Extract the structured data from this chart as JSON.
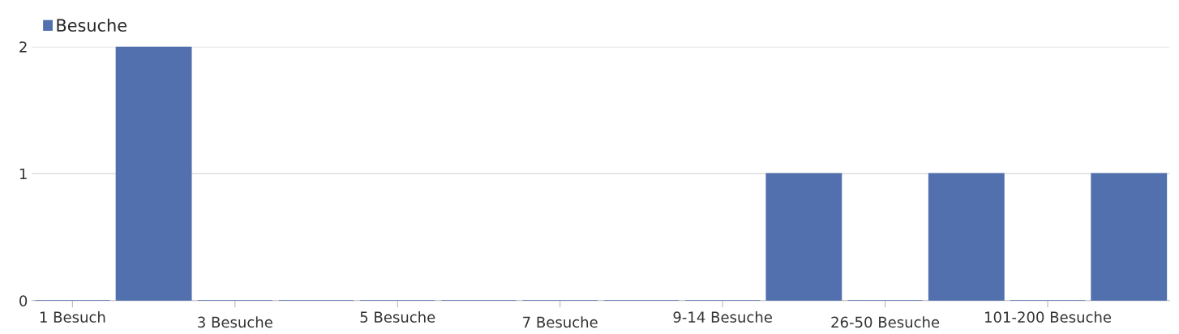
{
  "chart_data": {
    "type": "bar",
    "categories": [
      "1 Besuch",
      null,
      "3 Besuche",
      null,
      "5 Besuche",
      null,
      "7 Besuche",
      null,
      "9-14 Besuche",
      null,
      "26-50 Besuche",
      null,
      "101-200 Besuche",
      null
    ],
    "series": [
      {
        "name": "Besuche",
        "color": "#5170ad",
        "values": [
          0,
          2,
          0,
          0,
          0,
          0,
          0,
          0,
          0,
          1,
          0,
          1,
          0,
          1
        ]
      }
    ],
    "ylim": [
      0,
      2
    ],
    "yticks": [
      0,
      1,
      2
    ],
    "grid": "y",
    "legend": "top left"
  }
}
